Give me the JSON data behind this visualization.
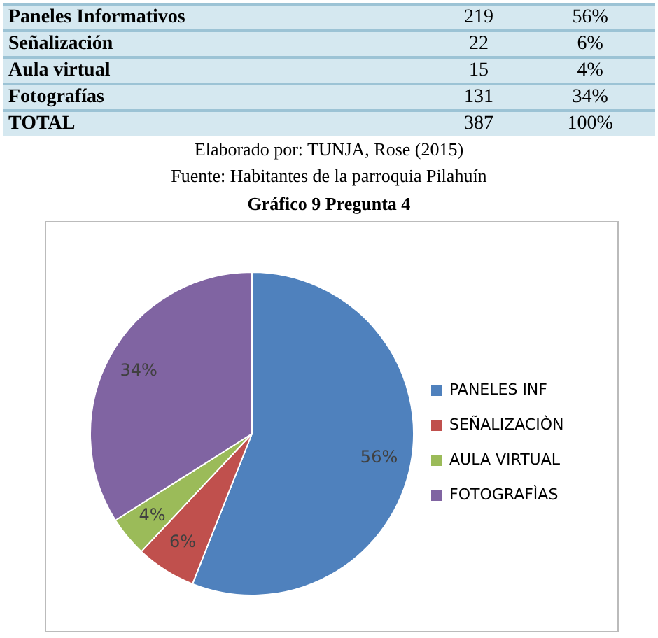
{
  "chart_data": {
    "type": "pie",
    "title": "Gráfico 9 Pregunta 4",
    "categories": [
      "PANELES INF",
      "SEÑALIZACIÒN",
      "AULA VIRTUAL",
      "FOTOGRAFÌAS"
    ],
    "values": [
      56,
      6,
      4,
      34
    ],
    "colors": [
      "#4f81bd",
      "#c0504d",
      "#9bbb59",
      "#8064a2"
    ],
    "value_labels": [
      "56%",
      "6%",
      "4%",
      "34%"
    ],
    "legend": "right",
    "annotations": [
      "Paneles Informativos",
      "219",
      "56%",
      "Señalización",
      "22",
      "6%",
      "Aula virtual",
      "15",
      "4%",
      "Fotografías",
      "131",
      "34%",
      "TOTAL",
      "387",
      "100%",
      "Elaborado por: TUNJA, Rose (2015)",
      "Fuente: Habitantes de la parroquia Pilahuín"
    ]
  }
}
